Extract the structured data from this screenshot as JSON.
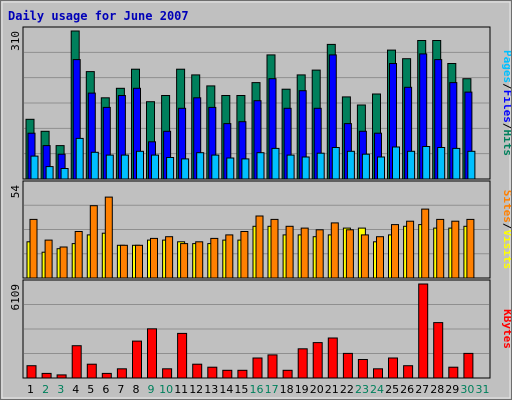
{
  "title": "Daily usage for June 2007",
  "colors": {
    "hits": "#00805c",
    "files": "#0000ff",
    "pages": "#00c0ff",
    "visits": "#ffff00",
    "sites": "#ff8000",
    "kbytes": "#ff0000",
    "weekend_day": "#00805c",
    "weekday_day": "#000000",
    "background": "#c0c0c0"
  },
  "chart_data": [
    {
      "type": "bar",
      "legend": [
        "Pages",
        "Files",
        "Hits"
      ],
      "ymax_label": "310",
      "ylim": [
        0,
        310
      ],
      "categories": [
        "1",
        "2",
        "3",
        "4",
        "5",
        "6",
        "7",
        "8",
        "9",
        "10",
        "11",
        "12",
        "13",
        "14",
        "15",
        "16",
        "17",
        "18",
        "19",
        "20",
        "21",
        "22",
        "23",
        "24",
        "25",
        "26",
        "27",
        "28",
        "29",
        "30",
        "31"
      ],
      "series": [
        {
          "name": "Hits",
          "values": [
            125,
            100,
            70,
            310,
            225,
            170,
            190,
            230,
            162,
            175,
            230,
            218,
            195,
            175,
            175,
            202,
            260,
            188,
            218,
            228,
            282,
            172,
            155,
            178,
            270,
            252,
            290,
            290,
            242,
            210,
            0
          ]
        },
        {
          "name": "Files",
          "values": [
            96,
            70,
            52,
            250,
            180,
            150,
            175,
            190,
            78,
            100,
            148,
            170,
            150,
            116,
            120,
            164,
            210,
            148,
            185,
            148,
            260,
            116,
            100,
            96,
            242,
            192,
            262,
            250,
            202,
            182,
            0
          ]
        },
        {
          "name": "Pages",
          "values": [
            48,
            26,
            22,
            85,
            56,
            50,
            50,
            58,
            50,
            45,
            42,
            55,
            50,
            44,
            42,
            55,
            64,
            50,
            46,
            54,
            66,
            58,
            52,
            46,
            67,
            58,
            68,
            66,
            64,
            58,
            0
          ]
        }
      ]
    },
    {
      "type": "bar",
      "legend": [
        "Sites",
        "Visits"
      ],
      "ymax_label": "54",
      "ylim": [
        0,
        54
      ],
      "categories": [
        "1",
        "2",
        "3",
        "4",
        "5",
        "6",
        "7",
        "8",
        "9",
        "10",
        "11",
        "12",
        "13",
        "14",
        "15",
        "16",
        "17",
        "18",
        "19",
        "20",
        "21",
        "22",
        "23",
        "24",
        "25",
        "26",
        "27",
        "28",
        "29",
        "30",
        "31"
      ],
      "series": [
        {
          "name": "Visits",
          "values": [
            21,
            15,
            17,
            20,
            25,
            26,
            19,
            19,
            22,
            22,
            21,
            20,
            20,
            22,
            22,
            30,
            30,
            25,
            25,
            24,
            25,
            29,
            29,
            21,
            25,
            30,
            31,
            29,
            29,
            30,
            0
          ]
        },
        {
          "name": "Sites",
          "values": [
            34,
            22,
            18,
            27,
            42,
            47,
            19,
            19,
            23,
            24,
            20,
            21,
            23,
            25,
            27,
            36,
            34,
            30,
            29,
            28,
            32,
            28,
            25,
            24,
            31,
            33,
            40,
            34,
            33,
            34,
            0
          ]
        }
      ]
    },
    {
      "type": "bar",
      "legend": [
        "KBytes"
      ],
      "ymax_label": "6109",
      "ylim": [
        0,
        6109
      ],
      "categories": [
        "1",
        "2",
        "3",
        "4",
        "5",
        "6",
        "7",
        "8",
        "9",
        "10",
        "11",
        "12",
        "13",
        "14",
        "15",
        "16",
        "17",
        "18",
        "19",
        "20",
        "21",
        "22",
        "23",
        "24",
        "25",
        "26",
        "27",
        "28",
        "29",
        "30",
        "31"
      ],
      "series": [
        {
          "name": "KBytes",
          "values": [
            800,
            300,
            200,
            2100,
            900,
            300,
            600,
            2400,
            3200,
            600,
            2900,
            900,
            700,
            500,
            500,
            1300,
            1500,
            500,
            1900,
            2300,
            2600,
            1600,
            1200,
            600,
            1300,
            800,
            6109,
            3600,
            700,
            1600,
            0
          ]
        }
      ]
    }
  ]
}
